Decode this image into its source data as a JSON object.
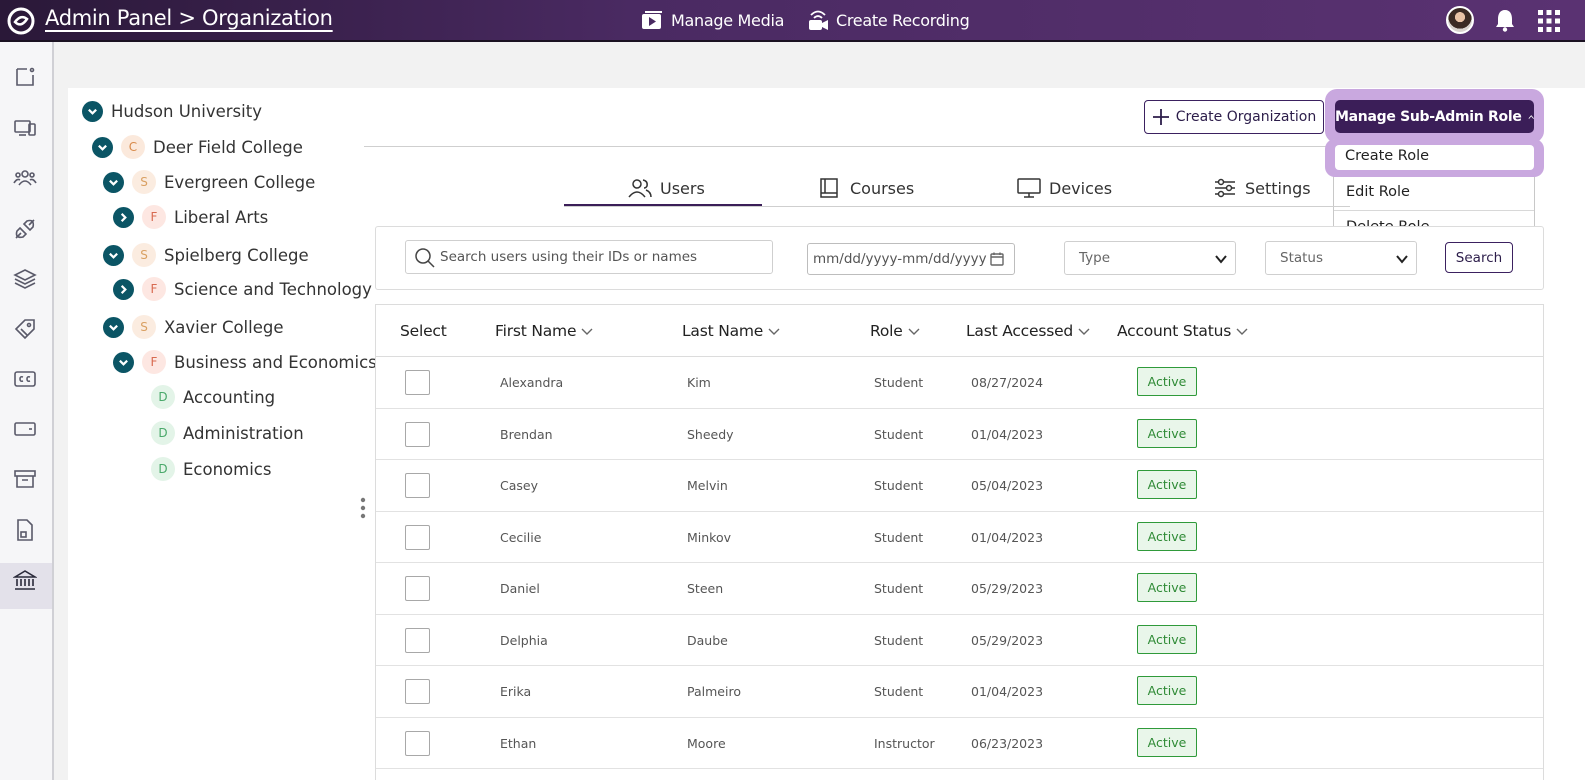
{
  "header": {
    "brand": "Admin Panel > Organization",
    "nav": [
      {
        "label": "Manage Media",
        "icon": "media-library-icon"
      },
      {
        "label": "Create Recording",
        "icon": "recording-camera-icon"
      }
    ]
  },
  "rail": {
    "items": [
      "page-icon",
      "devices-icon",
      "users-icon",
      "plug-icon",
      "layers-icon",
      "tag-icon",
      "closed-captions-icon",
      "card-icon",
      "archive-icon",
      "document-icon",
      "institution-icon"
    ],
    "active": "institution-icon"
  },
  "tree": {
    "nodes": [
      {
        "label": "Hudson University",
        "badge": ""
      },
      {
        "label": "Deer Field College",
        "badge": "C"
      },
      {
        "label": "Evergreen College",
        "badge": "S"
      },
      {
        "label": "Liberal Arts",
        "badge": "F"
      },
      {
        "label": "Spielberg College",
        "badge": "S"
      },
      {
        "label": "Science and Technology",
        "badge": "F"
      },
      {
        "label": "Xavier College",
        "badge": "S"
      },
      {
        "label": "Business and Economics",
        "badge": "F"
      },
      {
        "label": "Accounting",
        "badge": "D"
      },
      {
        "label": "Administration",
        "badge": "D"
      },
      {
        "label": "Economics",
        "badge": "D"
      }
    ]
  },
  "actions": {
    "create_org": "Create Organization",
    "manage_subadmin": "Manage Sub-Admin Role",
    "menu": [
      "Create Role",
      "Edit Role",
      "Delete Role"
    ]
  },
  "tabs": [
    {
      "label": "Users",
      "active": true
    },
    {
      "label": "Courses",
      "active": false
    },
    {
      "label": "Devices",
      "active": false
    },
    {
      "label": "Settings",
      "active": false
    }
  ],
  "filters": {
    "search_placeholder": "Search users using their IDs or names",
    "date_placeholder": "mm/dd/yyyy-mm/dd/yyyy",
    "type_value": "Type",
    "status_value": "Status",
    "search_button": "Search"
  },
  "table": {
    "columns": [
      "Select",
      "First Name",
      "Last Name",
      "Role",
      "Last Accessed",
      "Account Status"
    ],
    "rows": [
      {
        "first": "Alexandra",
        "last": "Kim",
        "role": "Student",
        "accessed": "08/27/2024",
        "status": "Active"
      },
      {
        "first": "Brendan",
        "last": "Sheedy",
        "role": "Student",
        "accessed": "01/04/2023",
        "status": "Active"
      },
      {
        "first": "Casey",
        "last": "Melvin",
        "role": "Student",
        "accessed": "05/04/2023",
        "status": "Active"
      },
      {
        "first": "Cecilie",
        "last": "Minkov",
        "role": "Student",
        "accessed": "01/04/2023",
        "status": "Active"
      },
      {
        "first": "Daniel",
        "last": "Steen",
        "role": "Student",
        "accessed": "05/29/2023",
        "status": "Active"
      },
      {
        "first": "Delphia",
        "last": "Daube",
        "role": "Student",
        "accessed": "05/29/2023",
        "status": "Active"
      },
      {
        "first": "Erika",
        "last": "Palmeiro",
        "role": "Student",
        "accessed": "01/04/2023",
        "status": "Active"
      },
      {
        "first": "Ethan",
        "last": "Moore",
        "role": "Instructor",
        "accessed": "06/23/2023",
        "status": "Active"
      }
    ]
  },
  "colors": {
    "brand_purple": "#3b1e58",
    "tree_toggle": "#0b5565",
    "status_green": "#2f9a3a",
    "highlight": "#c9a8df"
  }
}
